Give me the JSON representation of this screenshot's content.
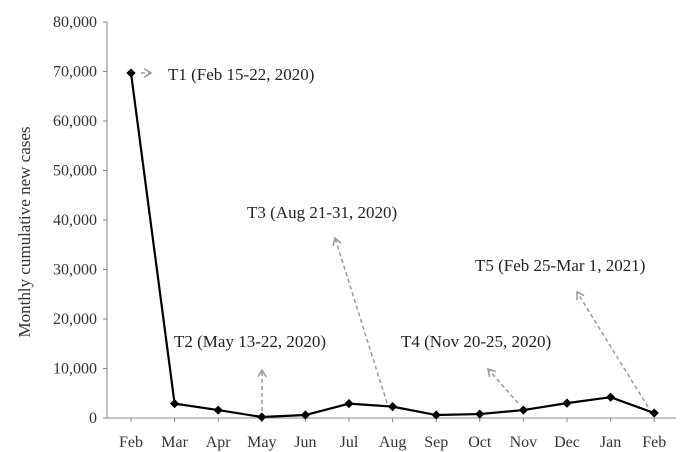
{
  "chart_data": {
    "type": "line",
    "title": "",
    "xlabel": "",
    "ylabel": "Monthly cumulative new cases",
    "categories": [
      "Feb",
      "Mar",
      "Apr",
      "May",
      "Jun",
      "Jul",
      "Aug",
      "Sep",
      "Oct",
      "Nov",
      "Dec",
      "Jan",
      "Feb"
    ],
    "series": [
      {
        "values": [
          69700,
          2900,
          1600,
          200,
          600,
          2900,
          2300,
          600,
          800,
          1600,
          3000,
          4200,
          1000
        ]
      }
    ],
    "ylim": [
      0,
      80000
    ],
    "yticks": [
      0,
      10000,
      20000,
      30000,
      40000,
      50000,
      60000,
      70000,
      80000
    ],
    "ytick_labels": [
      "0",
      "10,000",
      "20,000",
      "30,000",
      "40,000",
      "50,000",
      "60,000",
      "70,000",
      "80,000"
    ],
    "grid": false,
    "legend": "none",
    "line_color": "#000000",
    "arrow_color": "#9a9a9a",
    "annotations": [
      {
        "label": "T1 (Feb 15-22, 2020)",
        "point_index": 0
      },
      {
        "label": "T2 (May 13-22, 2020)",
        "point_index": 3
      },
      {
        "label": "T3 (Aug 21-31, 2020)",
        "point_index": 6
      },
      {
        "label": "T4 (Nov 20-25, 2020)",
        "point_index": 9
      },
      {
        "label": "T5 (Feb 25-Mar 1, 2021)",
        "point_index": 12
      }
    ]
  }
}
